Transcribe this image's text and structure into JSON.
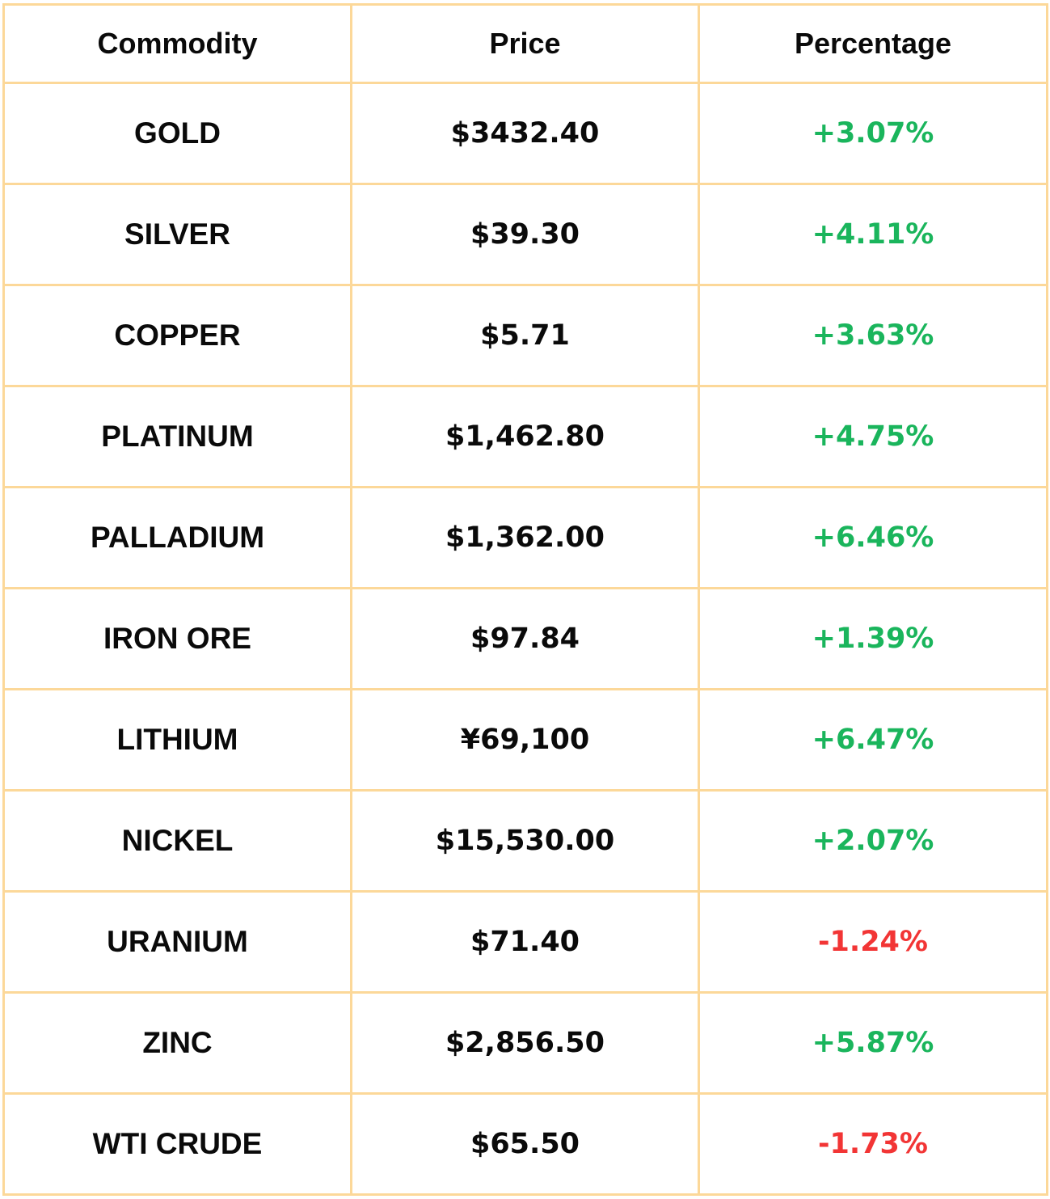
{
  "header": {
    "commodity": "Commodity",
    "price": "Price",
    "percentage": "Percentage"
  },
  "rows": [
    {
      "commodity": "GOLD",
      "price": "$3432.40",
      "percentage": "+3.07%",
      "direction": "up"
    },
    {
      "commodity": "SILVER",
      "price": "$39.30",
      "percentage": "+4.11%",
      "direction": "up"
    },
    {
      "commodity": "COPPER",
      "price": "$5.71",
      "percentage": "+3.63%",
      "direction": "up"
    },
    {
      "commodity": "PLATINUM",
      "price": "$1,462.80",
      "percentage": "+4.75%",
      "direction": "up"
    },
    {
      "commodity": "PALLADIUM",
      "price": "$1,362.00",
      "percentage": "+6.46%",
      "direction": "up"
    },
    {
      "commodity": "IRON ORE",
      "price": "$97.84",
      "percentage": "+1.39%",
      "direction": "up"
    },
    {
      "commodity": "LITHIUM",
      "price": "¥69,100",
      "percentage": "+6.47%",
      "direction": "up"
    },
    {
      "commodity": "NICKEL",
      "price": "$15,530.00",
      "percentage": "+2.07%",
      "direction": "up"
    },
    {
      "commodity": "URANIUM",
      "price": "$71.40",
      "percentage": "-1.24%",
      "direction": "down"
    },
    {
      "commodity": "ZINC",
      "price": "$2,856.50",
      "percentage": "+5.87%",
      "direction": "up"
    },
    {
      "commodity": "WTI CRUDE",
      "price": "$65.50",
      "percentage": "-1.73%",
      "direction": "down"
    }
  ],
  "colors": {
    "border": "#fcd899",
    "positive": "#1ab55c",
    "negative": "#f23535",
    "text": "#0a0a0a"
  }
}
